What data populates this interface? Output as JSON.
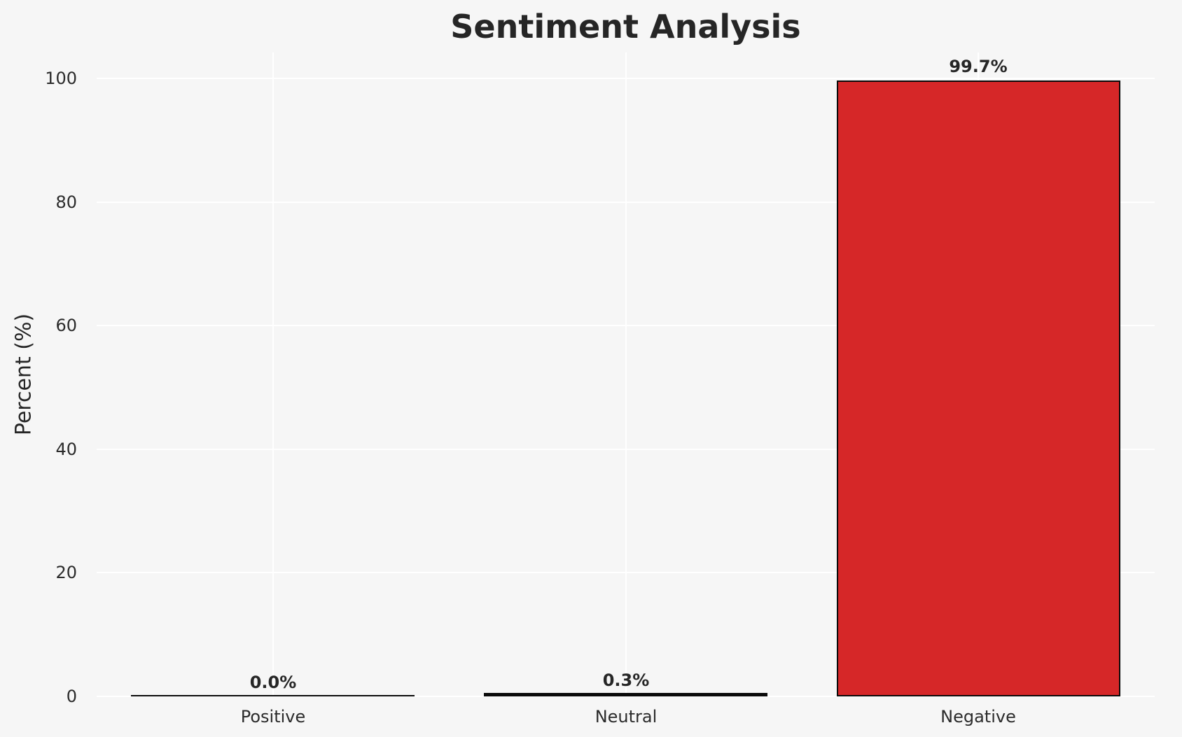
{
  "page": {
    "background": "#f6f6f6"
  },
  "chart_data": {
    "type": "bar",
    "title": "Sentiment Analysis",
    "xlabel": "",
    "ylabel": "Percent (%)",
    "categories": [
      "Positive",
      "Neutral",
      "Negative"
    ],
    "values": [
      0.0,
      0.3,
      99.7
    ],
    "value_labels": [
      "0.0%",
      "0.3%",
      "99.7%"
    ],
    "bar_color": "#d62728",
    "bar_edge_color": "#0a0a0a",
    "ylim": [
      0,
      104
    ],
    "yticks": [
      0,
      20,
      40,
      60,
      80,
      100
    ],
    "grid": true,
    "gridline_color": "#ffffff",
    "background_color": "#f6f6f6",
    "text_color": "#262626",
    "legend": "none"
  }
}
